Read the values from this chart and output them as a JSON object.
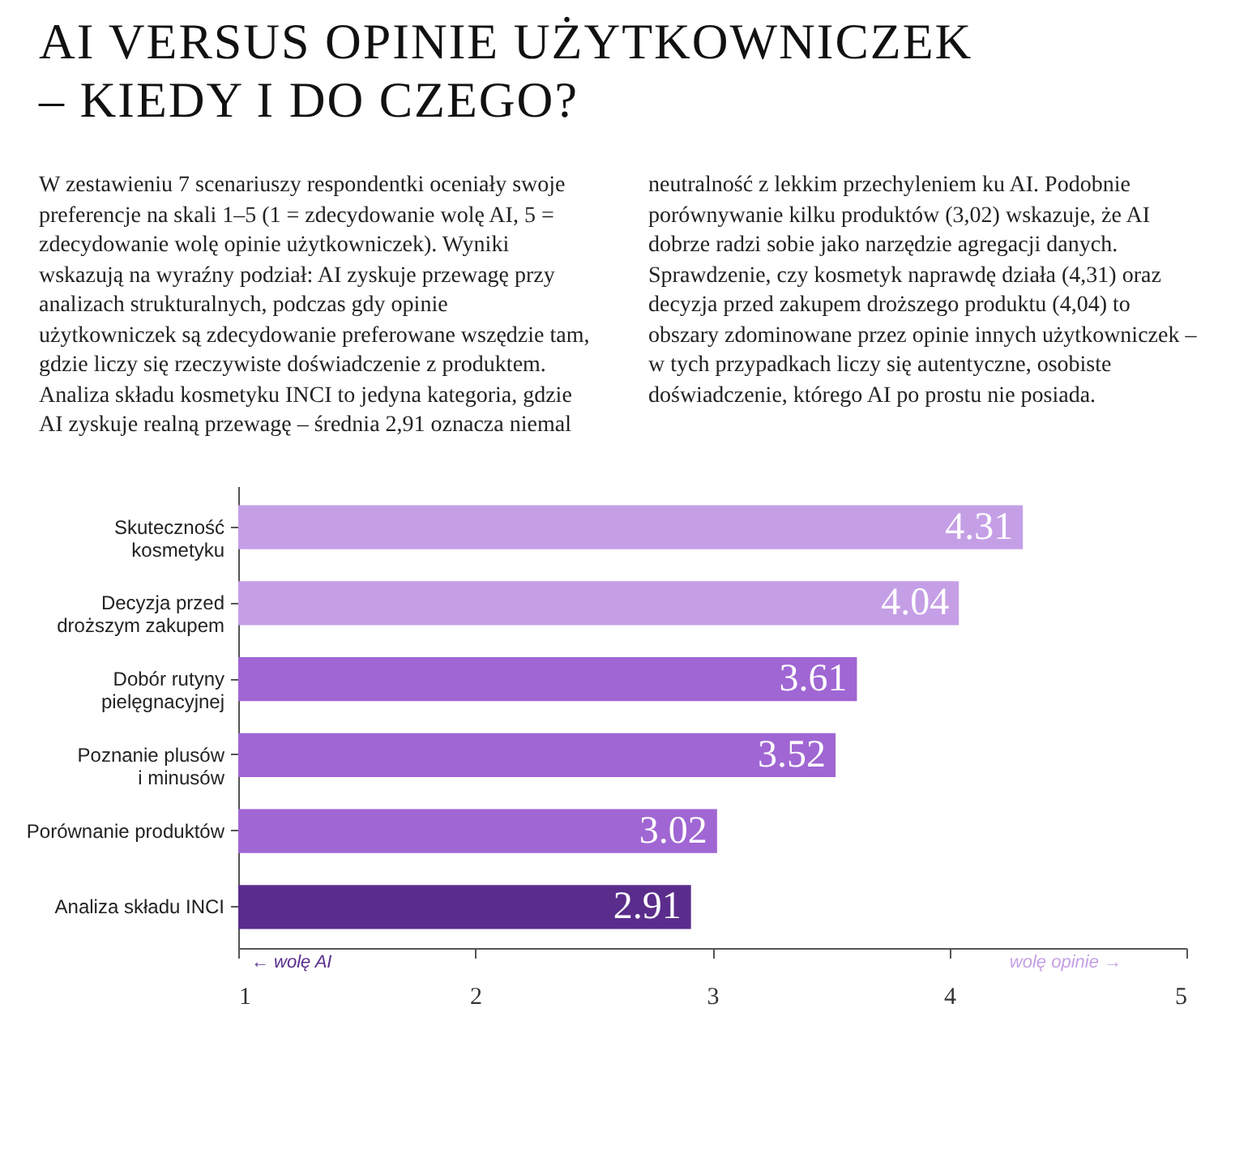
{
  "chart_data": {
    "type": "bar",
    "orientation": "horizontal",
    "title": "AI VERSUS OPINIE UŻYTKOWNICZEK – KIEDY I DO CZEGO?",
    "annotations": [
      "W zestawieniu 7 scenariuszy respondentki oceniały swoje preferencje na skali 1–5 (1 = zdecydowanie wolę AI, 5 = zdecydowanie wolę opinie użytkowniczek). Wyniki wskazują na wyraźny podział: AI zyskuje przewagę przy analizach strukturalnych, podczas gdy opinie użytkowniczek są zdecydowanie preferowane wszędzie tam, gdzie liczy się rzeczywiste doświadczenie z produktem. Analiza składu kosmetyku INCI to jedyna kategoria, gdzie AI zyskuje realną przewagę – średnia 2,91 oznacza niemal neutralność z lekkim przechyleniem ku AI. Podobnie porównywanie kilku produktów (3,02) wskazuje, że AI dobrze radzi sobie jako narzędzie agregacji danych. Sprawdzenie, czy kosmetyk naprawdę działa (4,31) oraz decyzja przed zakupem droższego produktu (4,04) to obszary zdominowane przez opinie innych użytkowniczek – w tych przypadkach liczy się autentyczne, osobiste doświadczenie, którego AI po prostu nie posiada.",
      "← wolę AI",
      "wolę opinie →"
    ],
    "categories": [
      "Skuteczność kosmetyku",
      "Decyzja przed droższym zakupem",
      "Dobór rutyny pielęgnacyjnej",
      "Poznanie plusów i minusów",
      "Porównanie produktów",
      "Analiza składu INCI"
    ],
    "values": [
      4.31,
      4.04,
      3.61,
      3.52,
      3.02,
      2.91
    ],
    "colors": [
      "#c59fe6",
      "#c59fe6",
      "#a066d3",
      "#a066d3",
      "#a066d3",
      "#5a2d8c"
    ],
    "xlim": [
      1,
      5
    ],
    "xticks": [
      1,
      2,
      3,
      4,
      5
    ],
    "data_labels": true
  }
}
